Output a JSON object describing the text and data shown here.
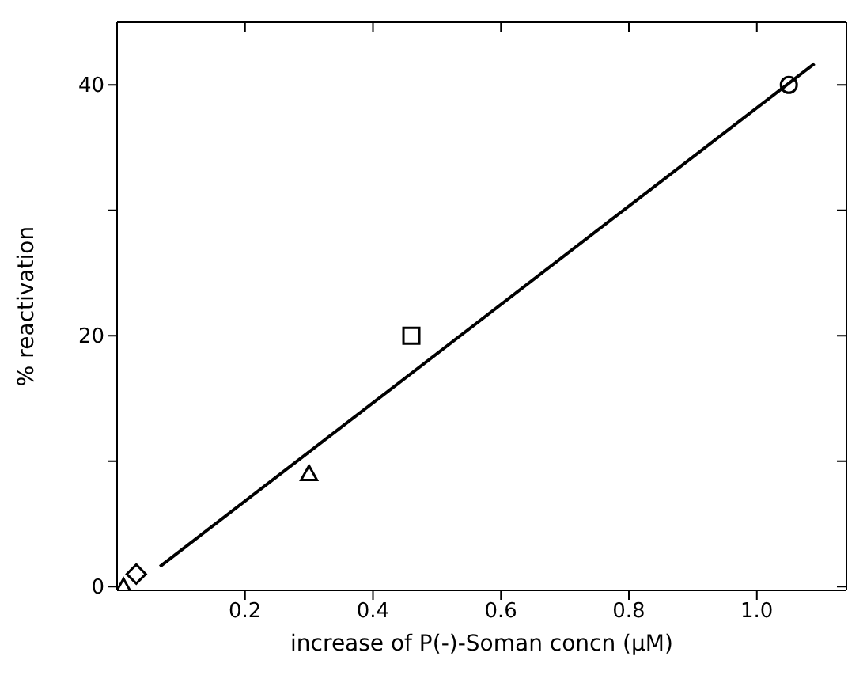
{
  "chart_data": {
    "type": "scatter",
    "xlabel": "increase of P(-)-Soman concn (µM)",
    "ylabel": "% reactivation",
    "xlim": [
      0,
      1.14
    ],
    "ylim": [
      -0.3,
      45
    ],
    "xticks": [
      0.2,
      0.4,
      0.6,
      0.8,
      {
        "value": 1,
        "label": "1.0"
      }
    ],
    "yticks": [
      0,
      {
        "value": 10,
        "label": null
      },
      20,
      {
        "value": 30,
        "label": null
      },
      40
    ],
    "legend": false,
    "series": [
      {
        "marker": "triangle",
        "color": "#000000",
        "x": [
          0.01
        ],
        "values": [
          0
        ]
      },
      {
        "marker": "diamond",
        "color": "#000000",
        "x": [
          0.03
        ],
        "values": [
          1
        ]
      },
      {
        "marker": "triangle",
        "color": "#000000",
        "x": [
          0.3
        ],
        "values": [
          9
        ]
      },
      {
        "marker": "square",
        "color": "#000000",
        "x": [
          0.46
        ],
        "values": [
          20
        ]
      },
      {
        "marker": "circle",
        "color": "#000000",
        "x": [
          1.05
        ],
        "values": [
          40
        ]
      },
      {
        "type": "line",
        "marker": "none",
        "line_style": "solid",
        "color": "#000000",
        "x": [
          0.067,
          1.09
        ],
        "values": [
          1.6,
          41.7
        ]
      }
    ]
  }
}
